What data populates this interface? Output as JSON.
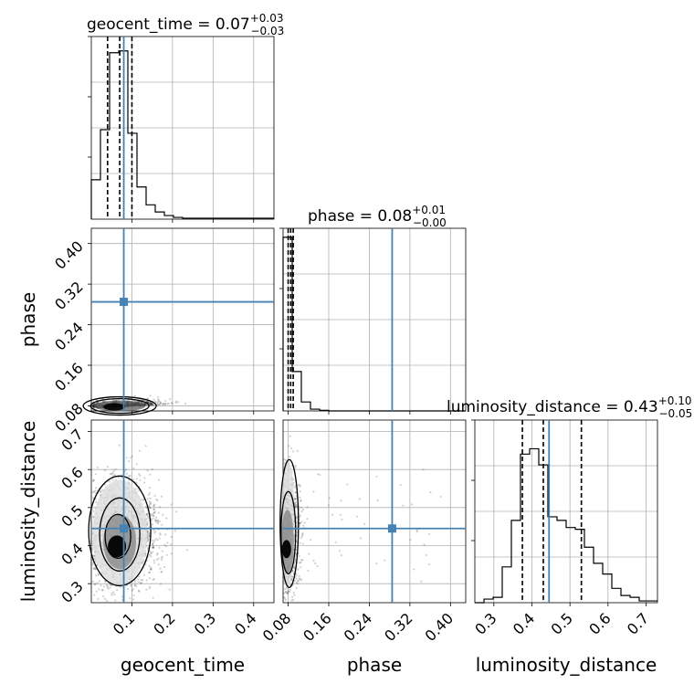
{
  "chart_data": {
    "type": "corner",
    "parameters": [
      "geocent_time",
      "phase",
      "luminosity_distance"
    ],
    "truths": [
      0.08,
      0.285,
      0.445
    ],
    "truth_color": "#4682b4",
    "grid": true,
    "titles": {
      "geocent_time": {
        "prefix": "geocent_time = ",
        "median": "0.07",
        "plus": "+0.03",
        "minus": "−0.03"
      },
      "phase": {
        "prefix": "phase = ",
        "median": "0.08",
        "plus": "+0.01",
        "minus": "−0.00"
      },
      "luminosity_distance": {
        "prefix": "luminosity_distance = ",
        "median": "0.43",
        "plus": "+0.10",
        "minus": "−0.05"
      }
    },
    "axis_labels": {
      "geocent_time": "geocent_time",
      "phase": "phase",
      "luminosity_distance": "luminosity_distance"
    },
    "ranges": {
      "geocent_time": [
        0.0,
        0.45
      ],
      "phase": [
        0.07,
        0.43
      ],
      "luminosity_distance": [
        0.25,
        0.73
      ]
    },
    "ticks": {
      "geocent_time": [
        "0.1",
        "0.2",
        "0.3",
        "0.4"
      ],
      "phase": [
        "0.08",
        "0.16",
        "0.24",
        "0.32",
        "0.40"
      ],
      "luminosity_distance": [
        "0.3",
        "0.4",
        "0.5",
        "0.6",
        "0.7"
      ]
    },
    "ld_row_ticks": [
      "0.3",
      "0.4",
      "0.5",
      "0.6",
      "0.7"
    ],
    "phase_row_ticks": [
      "0.08",
      "0.16",
      "0.24",
      "0.32",
      "0.40"
    ],
    "histograms": {
      "geocent_time": {
        "edges": [
          0.0,
          0.0225,
          0.045,
          0.0675,
          0.09,
          0.1125,
          0.135,
          0.1575,
          0.18,
          0.2025,
          0.225,
          0.45
        ],
        "counts": [
          0.22,
          0.5,
          0.93,
          0.94,
          0.48,
          0.18,
          0.08,
          0.04,
          0.02,
          0.01,
          0.005
        ]
      },
      "phase": {
        "edges": [
          0.07,
          0.088,
          0.106,
          0.124,
          0.142,
          0.16,
          0.43
        ],
        "counts": [
          0.97,
          0.22,
          0.05,
          0.01,
          0.003,
          0.0
        ]
      },
      "luminosity_distance": {
        "edges": [
          0.25,
          0.274,
          0.298,
          0.322,
          0.346,
          0.37,
          0.394,
          0.418,
          0.442,
          0.466,
          0.49,
          0.514,
          0.538,
          0.562,
          0.586,
          0.61,
          0.634,
          0.658,
          0.682,
          0.706,
          0.73
        ],
        "counts": [
          0.0,
          0.02,
          0.03,
          0.2,
          0.46,
          0.83,
          0.86,
          0.77,
          0.48,
          0.46,
          0.42,
          0.41,
          0.31,
          0.22,
          0.16,
          0.08,
          0.04,
          0.03,
          0.01,
          0.01
        ]
      }
    },
    "quantile_lines": {
      "geocent_time": [
        0.04,
        0.07,
        0.1
      ],
      "phase": [
        0.08,
        0.085,
        0.09
      ],
      "luminosity_distance": [
        0.375,
        0.43,
        0.53
      ]
    }
  }
}
